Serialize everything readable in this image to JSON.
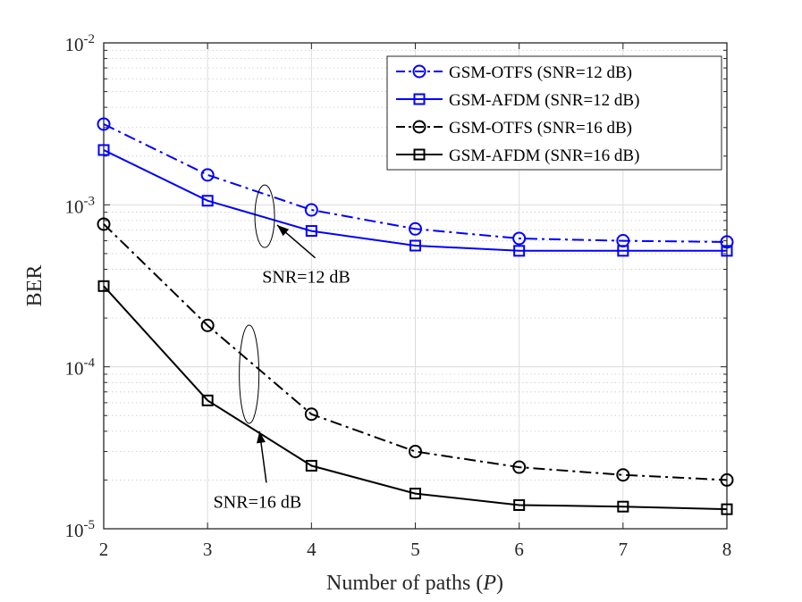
{
  "chart_data": {
    "type": "line",
    "title": "",
    "xlabel": "Number of paths (",
    "xlabel_var": "P",
    "xlabel_close": ")",
    "ylabel": "BER",
    "yscale": "log",
    "xlim": [
      2,
      8
    ],
    "ylim": [
      1e-05,
      0.01
    ],
    "grid": true,
    "legend_location": "top-right",
    "x": [
      2,
      3,
      4,
      5,
      6,
      7,
      8
    ],
    "x_tick_labels": [
      "2",
      "3",
      "4",
      "5",
      "6",
      "7",
      "8"
    ],
    "y_ticks": [
      {
        "value": 1e-05,
        "base": "10",
        "exp": "-5"
      },
      {
        "value": 0.0001,
        "base": "10",
        "exp": "-4"
      },
      {
        "value": 0.001,
        "base": "10",
        "exp": "-3"
      },
      {
        "value": 0.01,
        "base": "10",
        "exp": "-2"
      }
    ],
    "series": [
      {
        "name": "GSM-OTFS (SNR=12 dB)",
        "color": "#0000ff",
        "dash": "dashdot",
        "marker": "circle",
        "values": [
          0.00315,
          0.00153,
          0.00093,
          0.00071,
          0.00062,
          0.0006,
          0.00059
        ]
      },
      {
        "name": "GSM-AFDM (SNR=12 dB)",
        "color": "#0000ff",
        "dash": "solid",
        "marker": "square",
        "values": [
          0.00218,
          0.00106,
          0.00069,
          0.00056,
          0.00052,
          0.00052,
          0.00052
        ]
      },
      {
        "name": "GSM-OTFS (SNR=16 dB)",
        "color": "#000000",
        "dash": "dashdot",
        "marker": "circle",
        "values": [
          0.00076,
          0.00018,
          5.1e-05,
          3e-05,
          2.4e-05,
          2.15e-05,
          2e-05
        ]
      },
      {
        "name": "GSM-AFDM (SNR=16 dB)",
        "color": "#000000",
        "dash": "solid",
        "marker": "square",
        "values": [
          0.000315,
          6.2e-05,
          2.45e-05,
          1.65e-05,
          1.4e-05,
          1.37e-05,
          1.32e-05
        ]
      }
    ],
    "annotations": [
      {
        "text": "SNR=12 dB",
        "ellipse_x": 3.55,
        "ellipse_y": 0.00085,
        "point_x": 3.67,
        "point_y": 0.00075,
        "text_x": 3.95,
        "text_y": 0.00033
      },
      {
        "text": "SNR=16 dB",
        "ellipse_x": 3.4,
        "ellipse_y": 9e-05,
        "point_x": 3.5,
        "point_y": 4e-05,
        "text_x": 3.48,
        "text_y": 1.35e-05
      }
    ]
  }
}
